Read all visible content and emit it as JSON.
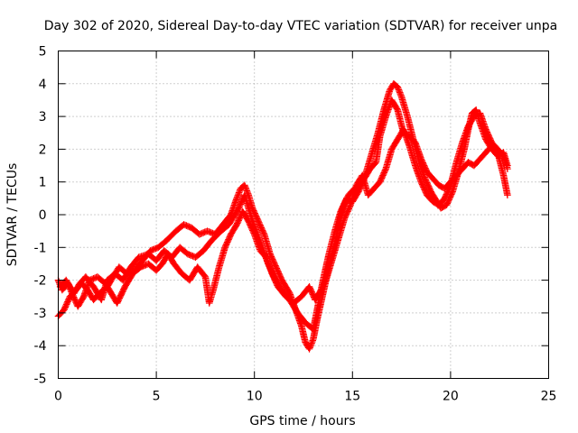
{
  "chart_data": {
    "type": "scatter",
    "title": "Day 302 of 2020, Sidereal Day-to-day VTEC variation (SDTVAR) for receiver unpa",
    "xlabel": "GPS time / hours",
    "ylabel": "SDTVAR / TECUs",
    "xlim": [
      0,
      25
    ],
    "ylim": [
      -5,
      5
    ],
    "xticks": [
      0,
      5,
      10,
      15,
      20,
      25
    ],
    "yticks": [
      -5,
      -4,
      -3,
      -2,
      -1,
      0,
      1,
      2,
      3,
      4,
      5
    ],
    "xtick_labels": [
      "0",
      "5",
      "10",
      "15",
      "20",
      "25"
    ],
    "ytick_labels": [
      "-5",
      "-4",
      "-3",
      "-2",
      "-1",
      "0",
      "1",
      "2",
      "3",
      "4",
      "5"
    ],
    "grid": true,
    "marker": "plus",
    "series": [
      {
        "name": "SDTVAR",
        "color": "#ff0000",
        "tracks": [
          [
            [
              0.0,
              -3.1
            ],
            [
              0.3,
              -2.9
            ],
            [
              0.6,
              -2.5
            ],
            [
              0.9,
              -2.3
            ],
            [
              1.2,
              -2.1
            ],
            [
              1.5,
              -2.3
            ],
            [
              1.8,
              -2.6
            ],
            [
              2.1,
              -2.4
            ],
            [
              2.5,
              -2.2
            ],
            [
              2.8,
              -1.9
            ],
            [
              3.1,
              -1.6
            ],
            [
              3.5,
              -1.8
            ],
            [
              3.9,
              -1.7
            ],
            [
              4.3,
              -1.4
            ],
            [
              4.7,
              -1.1
            ],
            [
              5.1,
              -1.0
            ],
            [
              5.5,
              -0.8
            ],
            [
              6.0,
              -0.5
            ],
            [
              6.4,
              -0.3
            ],
            [
              6.8,
              -0.4
            ],
            [
              7.2,
              -0.6
            ],
            [
              7.6,
              -0.5
            ],
            [
              8.0,
              -0.6
            ],
            [
              8.4,
              -0.3
            ],
            [
              8.8,
              0.0
            ],
            [
              9.1,
              0.5
            ],
            [
              9.3,
              0.8
            ],
            [
              9.5,
              0.9
            ],
            [
              9.7,
              0.6
            ],
            [
              9.9,
              0.2
            ],
            [
              10.2,
              -0.2
            ],
            [
              10.5,
              -0.6
            ],
            [
              10.8,
              -1.2
            ],
            [
              11.1,
              -1.6
            ],
            [
              11.4,
              -2.0
            ],
            [
              11.8,
              -2.4
            ],
            [
              12.1,
              -2.9
            ],
            [
              12.4,
              -3.4
            ],
            [
              12.6,
              -3.9
            ],
            [
              12.8,
              -4.1
            ],
            [
              13.0,
              -3.8
            ],
            [
              13.2,
              -3.2
            ],
            [
              13.5,
              -2.4
            ],
            [
              13.8,
              -1.6
            ],
            [
              14.1,
              -0.9
            ],
            [
              14.3,
              -0.3
            ],
            [
              14.5,
              0.2
            ],
            [
              14.8,
              0.6
            ],
            [
              15.1,
              0.8
            ],
            [
              15.4,
              0.9
            ],
            [
              15.7,
              1.3
            ],
            [
              16.0,
              1.9
            ],
            [
              16.3,
              2.5
            ],
            [
              16.6,
              3.2
            ],
            [
              16.9,
              3.8
            ],
            [
              17.1,
              4.0
            ],
            [
              17.3,
              3.9
            ],
            [
              17.5,
              3.6
            ],
            [
              17.8,
              3.0
            ],
            [
              18.1,
              2.3
            ],
            [
              18.4,
              1.6
            ],
            [
              18.7,
              1.1
            ],
            [
              19.0,
              0.7
            ],
            [
              19.3,
              0.4
            ],
            [
              19.5,
              0.2
            ],
            [
              19.8,
              0.3
            ],
            [
              20.1,
              0.7
            ],
            [
              20.4,
              1.3
            ],
            [
              20.7,
              2.0
            ],
            [
              20.9,
              2.6
            ],
            [
              21.1,
              3.1
            ],
            [
              21.3,
              3.2
            ],
            [
              21.5,
              2.8
            ],
            [
              21.8,
              2.3
            ],
            [
              22.1,
              2.0
            ],
            [
              22.4,
              1.8
            ],
            [
              22.7,
              1.9
            ],
            [
              22.9,
              1.5
            ]
          ],
          [
            [
              0.1,
              -2.2
            ],
            [
              0.4,
              -2.0
            ],
            [
              0.8,
              -2.4
            ],
            [
              1.1,
              -2.1
            ],
            [
              1.4,
              -1.9
            ],
            [
              1.8,
              -2.2
            ],
            [
              2.2,
              -2.6
            ],
            [
              2.5,
              -2.0
            ],
            [
              2.9,
              -1.8
            ],
            [
              3.3,
              -2.0
            ],
            [
              3.7,
              -1.6
            ],
            [
              4.1,
              -1.3
            ],
            [
              4.6,
              -1.2
            ],
            [
              5.0,
              -1.4
            ],
            [
              5.4,
              -1.1
            ],
            [
              5.8,
              -1.3
            ],
            [
              6.2,
              -1.0
            ],
            [
              6.6,
              -1.2
            ],
            [
              7.0,
              -1.3
            ],
            [
              7.4,
              -1.1
            ],
            [
              7.8,
              -0.8
            ],
            [
              8.3,
              -0.5
            ],
            [
              8.7,
              -0.3
            ],
            [
              9.2,
              0.2
            ],
            [
              9.5,
              0.6
            ],
            [
              9.8,
              0.0
            ],
            [
              10.1,
              -0.5
            ],
            [
              10.4,
              -1.0
            ],
            [
              10.7,
              -1.5
            ],
            [
              11.0,
              -1.9
            ],
            [
              11.4,
              -2.3
            ],
            [
              11.8,
              -2.6
            ],
            [
              12.2,
              -3.0
            ],
            [
              12.6,
              -3.3
            ],
            [
              13.0,
              -3.5
            ],
            [
              13.2,
              -2.9
            ],
            [
              13.5,
              -2.0
            ],
            [
              13.8,
              -1.2
            ],
            [
              14.1,
              -0.5
            ],
            [
              14.4,
              0.1
            ],
            [
              14.7,
              0.5
            ],
            [
              15.0,
              0.4
            ],
            [
              15.3,
              0.7
            ],
            [
              15.6,
              1.1
            ],
            [
              15.9,
              1.4
            ],
            [
              16.2,
              1.6
            ],
            [
              16.4,
              2.4
            ],
            [
              16.7,
              3.0
            ],
            [
              17.0,
              3.5
            ],
            [
              17.3,
              3.2
            ],
            [
              17.6,
              2.5
            ],
            [
              17.9,
              2.4
            ],
            [
              18.2,
              2.2
            ],
            [
              18.5,
              1.7
            ],
            [
              18.8,
              1.3
            ],
            [
              19.1,
              1.1
            ],
            [
              19.4,
              0.9
            ],
            [
              19.7,
              0.8
            ],
            [
              20.0,
              1.0
            ],
            [
              20.3,
              1.2
            ],
            [
              20.6,
              1.4
            ],
            [
              20.9,
              1.6
            ],
            [
              21.2,
              1.5
            ],
            [
              21.5,
              1.7
            ],
            [
              21.8,
              1.9
            ],
            [
              22.1,
              2.1
            ],
            [
              22.4,
              1.9
            ],
            [
              22.7,
              1.2
            ],
            [
              22.9,
              0.6
            ]
          ],
          [
            [
              0.0,
              -2.0
            ],
            [
              0.2,
              -2.3
            ],
            [
              0.5,
              -2.1
            ],
            [
              0.7,
              -2.4
            ],
            [
              1.0,
              -2.8
            ],
            [
              1.3,
              -2.5
            ],
            [
              1.6,
              -2.0
            ],
            [
              2.0,
              -1.9
            ],
            [
              2.4,
              -2.1
            ],
            [
              2.7,
              -2.4
            ],
            [
              3.0,
              -2.7
            ],
            [
              3.4,
              -2.2
            ],
            [
              3.8,
              -1.8
            ],
            [
              4.2,
              -1.6
            ],
            [
              4.6,
              -1.5
            ],
            [
              5.0,
              -1.7
            ],
            [
              5.3,
              -1.5
            ],
            [
              5.6,
              -1.2
            ],
            [
              5.9,
              -1.5
            ],
            [
              6.3,
              -1.8
            ],
            [
              6.7,
              -2.0
            ],
            [
              7.1,
              -1.6
            ],
            [
              7.5,
              -1.9
            ],
            [
              7.7,
              -2.7
            ],
            [
              7.9,
              -2.3
            ],
            [
              8.2,
              -1.6
            ],
            [
              8.5,
              -1.0
            ],
            [
              8.8,
              -0.6
            ],
            [
              9.1,
              -0.3
            ],
            [
              9.4,
              0.1
            ],
            [
              9.7,
              -0.2
            ],
            [
              10.0,
              -0.6
            ],
            [
              10.3,
              -1.1
            ],
            [
              10.6,
              -1.3
            ],
            [
              10.9,
              -1.8
            ],
            [
              11.2,
              -2.2
            ],
            [
              11.6,
              -2.5
            ],
            [
              12.0,
              -2.7
            ],
            [
              12.4,
              -2.5
            ],
            [
              12.8,
              -2.2
            ],
            [
              13.1,
              -2.6
            ],
            [
              13.4,
              -2.3
            ],
            [
              13.7,
              -1.9
            ],
            [
              14.0,
              -1.3
            ],
            [
              14.3,
              -0.7
            ],
            [
              14.6,
              -0.1
            ],
            [
              14.9,
              0.3
            ],
            [
              15.2,
              0.9
            ],
            [
              15.5,
              1.2
            ],
            [
              15.8,
              0.6
            ],
            [
              16.1,
              0.8
            ],
            [
              16.4,
              1.0
            ],
            [
              16.7,
              1.4
            ],
            [
              17.0,
              2.0
            ],
            [
              17.3,
              2.3
            ],
            [
              17.6,
              2.6
            ],
            [
              17.9,
              2.1
            ],
            [
              18.2,
              1.5
            ],
            [
              18.5,
              1.0
            ],
            [
              18.8,
              0.6
            ],
            [
              19.1,
              0.4
            ],
            [
              19.4,
              0.3
            ],
            [
              19.7,
              0.5
            ],
            [
              20.0,
              0.9
            ],
            [
              20.3,
              1.6
            ],
            [
              20.6,
              2.2
            ],
            [
              20.9,
              2.7
            ],
            [
              21.2,
              3.0
            ],
            [
              21.5,
              3.1
            ],
            [
              21.8,
              2.6
            ],
            [
              22.1,
              2.2
            ],
            [
              22.4,
              2.0
            ],
            [
              22.7,
              1.8
            ],
            [
              22.9,
              1.4
            ]
          ]
        ]
      }
    ]
  }
}
